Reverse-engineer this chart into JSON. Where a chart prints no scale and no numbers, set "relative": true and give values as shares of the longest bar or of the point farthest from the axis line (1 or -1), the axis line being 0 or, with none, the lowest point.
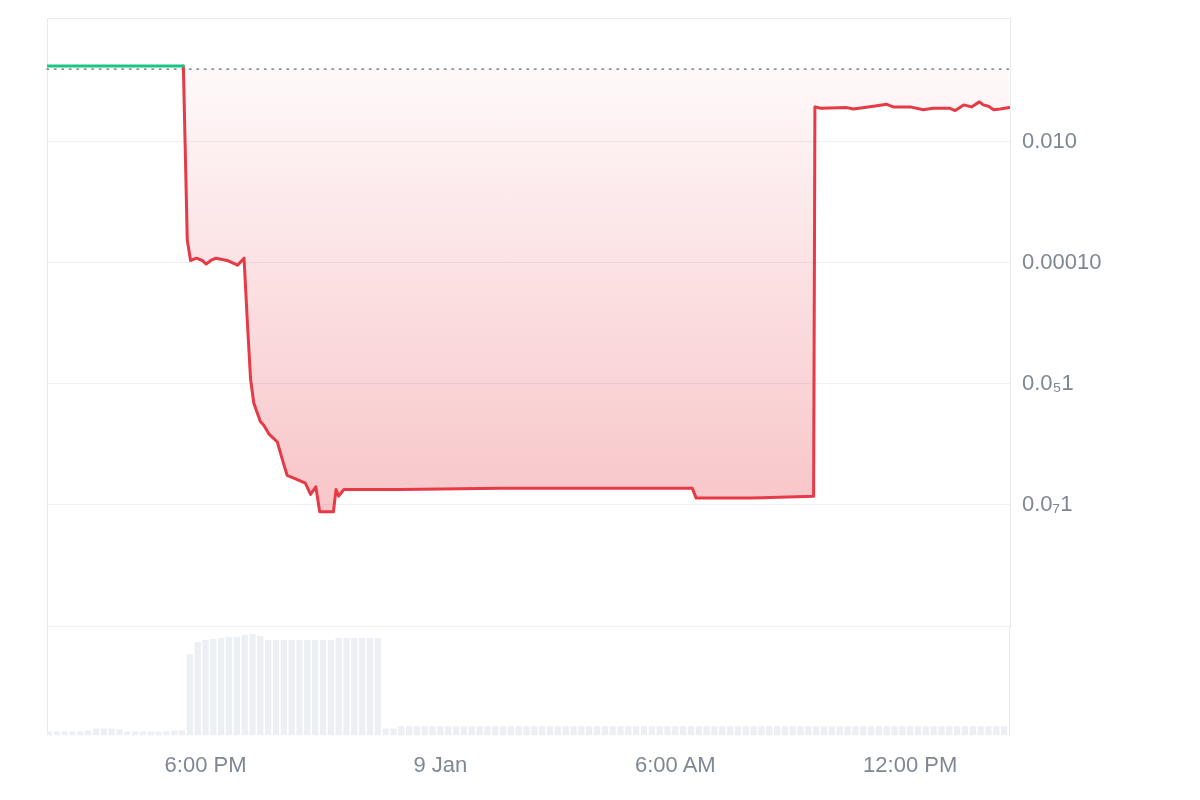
{
  "chart_data": [
    {
      "type": "line",
      "log": "y",
      "grid": "y",
      "tick_labels": "y",
      "xlim": [
        "--01-08T13:57",
        "--01-09T14:33"
      ],
      "ylim": [
        1e-10,
        1.12
      ],
      "yticks": [
        {
          "value": 1e-10,
          "label": null
        },
        {
          "value": 1e-08,
          "label": "0.0₇1"
        },
        {
          "value": 1e-06,
          "label": "0.0₅1"
        },
        {
          "value": 0.0001,
          "label": "0.00010"
        },
        {
          "value": 0.01,
          "label": "0.010"
        }
      ],
      "ref_lines": [
        {
          "axis": "y",
          "value": 0.16,
          "color": "#8c919a",
          "line_style": "dotted"
        }
      ],
      "series": [
        {
          "color": "#16c784",
          "x": [
            "--01-08T13:58",
            "--01-08T14:30",
            "--01-08T15:00",
            "--01-08T15:30",
            "--01-08T16:00",
            "--01-08T16:30",
            "--01-08T17:00",
            "--01-08T17:26"
          ],
          "values": [
            0.18,
            0.18,
            0.18,
            0.18,
            0.18,
            0.18,
            0.18,
            0.18
          ]
        },
        {
          "color": "#e63a46",
          "x": [
            "--01-08T17:26",
            "--01-08T17:32",
            "--01-08T17:37",
            "--01-08T17:46",
            "--01-08T17:55",
            "--01-08T18:01",
            "--01-08T18:08",
            "--01-08T18:16",
            "--01-08T18:33",
            "--01-08T18:49",
            "--01-08T18:59",
            "--01-08T19:04",
            "--01-08T19:09",
            "--01-08T19:14",
            "--01-08T19:24",
            "--01-08T19:29",
            "--01-08T19:37",
            "--01-08T19:50",
            "--01-08T19:58",
            "--01-08T20:05",
            "--01-08T20:18",
            "--01-08T20:33",
            "--01-08T20:41",
            "--01-08T20:49",
            "--01-08T20:55",
            "--01-08T21:16",
            "--01-08T21:20",
            "--01-08T21:24",
            "--01-08T21:32",
            "--01-08T22:59",
            "--01-09T01:32",
            "--01-09T04:05",
            "--01-09T06:26",
            "--01-09T06:32",
            "--01-09T07:55",
            "--01-09T09:32",
            "--01-09T09:34",
            "--01-09T09:43",
            "--01-09T10:23",
            "--01-09T10:33",
            "--01-09T11:04",
            "--01-09T11:24",
            "--01-09T11:34",
            "--01-09T12:00",
            "--01-09T12:20",
            "--01-09T12:35",
            "--01-09T13:01",
            "--01-09T13:09",
            "--01-09T13:22",
            "--01-09T13:34",
            "--01-09T13:46",
            "--01-09T13:52",
            "--01-09T14:00",
            "--01-09T14:08",
            "--01-09T14:18",
            "--01-09T14:32"
          ],
          "values": [
            0.18,
            0.00024,
            0.00011,
            0.00012,
            0.00011,
            9.6e-05,
            0.00011,
            0.00012,
            0.00011,
            9.2e-05,
            0.00012,
            1.1e-05,
            1.2e-06,
            4.8e-07,
            2.4e-07,
            2.1e-07,
            1.5e-07,
            1.1e-07,
            5.5e-08,
            3.1e-08,
            2.7e-08,
            2.3e-08,
            1.5e-08,
            2e-08,
            7.7e-09,
            7.7e-09,
            1.8e-08,
            1.4e-08,
            1.8e-08,
            1.8e-08,
            1.9e-08,
            1.9e-08,
            1.9e-08,
            1.3e-08,
            1.3e-08,
            1.4e-08,
            0.038,
            0.036,
            0.037,
            0.035,
            0.039,
            0.042,
            0.038,
            0.038,
            0.034,
            0.036,
            0.036,
            0.033,
            0.041,
            0.038,
            0.046,
            0.041,
            0.039,
            0.034,
            0.035,
            0.037
          ],
          "lower": [
            0.18,
            0.00024,
            0.00011,
            0.00012,
            0.00011,
            9.6e-05,
            0.00011,
            0.00012,
            0.00011,
            9.2e-05,
            0.00012,
            1.1e-05,
            1.2e-06,
            4.8e-07,
            2.4e-07,
            2.1e-07,
            1.5e-07,
            1.1e-07,
            5.5e-08,
            3.1e-08,
            2.7e-08,
            2.3e-08,
            1.5e-08,
            2e-08,
            7.7e-09,
            7.7e-09,
            1.8e-08,
            1.4e-08,
            1.8e-08,
            1.8e-08,
            1.9e-08,
            1.9e-08,
            1.9e-08,
            1.3e-08,
            1.3e-08,
            1.4e-08,
            0.038,
            0.036,
            0.037,
            0.035,
            0.039,
            0.042,
            0.038,
            0.038,
            0.034,
            0.036,
            0.036,
            0.033,
            0.041,
            0.038,
            0.046,
            0.041,
            0.039,
            0.034,
            0.035,
            0.037
          ],
          "upper": [
            0.16,
            0.16,
            0.16,
            0.16,
            0.16,
            0.16,
            0.16,
            0.16,
            0.16,
            0.16,
            0.16,
            0.16,
            0.16,
            0.16,
            0.16,
            0.16,
            0.16,
            0.16,
            0.16,
            0.16,
            0.16,
            0.16,
            0.16,
            0.16,
            0.16,
            0.16,
            0.16,
            0.16,
            0.16,
            0.16,
            0.16,
            0.16,
            0.16,
            0.16,
            0.16,
            0.16,
            0.16,
            0.16,
            0.16,
            0.16,
            0.16,
            0.16,
            0.16,
            0.16,
            0.16,
            0.16,
            0.16,
            0.16,
            0.16,
            0.16,
            0.16,
            0.16,
            0.16,
            0.16,
            0.16,
            0.16
          ]
        }
      ]
    },
    {
      "type": "bar",
      "relative": true,
      "tick_labels": "x",
      "color": "#eceff3",
      "xlim": [
        "--01-08T13:57",
        "--01-09T14:33"
      ],
      "xticks": [
        {
          "value": "--01-08T18:00",
          "label": "6:00 PM"
        },
        {
          "value": "--01-09T00:00",
          "label": "9 Jan"
        },
        {
          "value": "--01-09T06:00",
          "label": "6:00 AM"
        },
        {
          "value": "--01-09T12:00",
          "label": "12:00 PM"
        }
      ],
      "x": [
        "--01-08T14:00",
        "--01-08T14:12",
        "--01-08T14:24",
        "--01-08T14:36",
        "--01-08T14:48",
        "--01-08T15:00",
        "--01-08T15:12",
        "--01-08T15:24",
        "--01-08T15:36",
        "--01-08T15:48",
        "--01-08T16:00",
        "--01-08T16:12",
        "--01-08T16:24",
        "--01-08T16:36",
        "--01-08T16:48",
        "--01-08T17:00",
        "--01-08T17:12",
        "--01-08T17:24",
        "--01-08T17:36",
        "--01-08T17:48",
        "--01-08T18:00",
        "--01-08T18:12",
        "--01-08T18:24",
        "--01-08T18:36",
        "--01-08T18:48",
        "--01-08T19:00",
        "--01-08T19:12",
        "--01-08T19:24",
        "--01-08T19:36",
        "--01-08T19:48",
        "--01-08T20:00",
        "--01-08T20:12",
        "--01-08T20:24",
        "--01-08T20:36",
        "--01-08T20:48",
        "--01-08T21:00",
        "--01-08T21:12",
        "--01-08T21:24",
        "--01-08T21:36",
        "--01-08T21:48",
        "--01-08T22:00",
        "--01-08T22:12",
        "--01-08T22:24",
        "--01-08T22:36",
        "--01-08T22:48",
        "--01-08T23:00",
        "--01-08T23:12",
        "--01-08T23:24",
        "--01-08T23:36",
        "--01-08T23:48",
        "--01-09T00:00",
        "--01-09T00:12",
        "--01-09T00:24",
        "--01-09T00:36",
        "--01-09T00:48",
        "--01-09T01:00",
        "--01-09T01:12",
        "--01-09T01:24",
        "--01-09T01:36",
        "--01-09T01:48",
        "--01-09T02:00",
        "--01-09T02:12",
        "--01-09T02:24",
        "--01-09T02:36",
        "--01-09T02:48",
        "--01-09T03:00",
        "--01-09T03:12",
        "--01-09T03:24",
        "--01-09T03:36",
        "--01-09T03:48",
        "--01-09T04:00",
        "--01-09T04:12",
        "--01-09T04:24",
        "--01-09T04:36",
        "--01-09T04:48",
        "--01-09T05:00",
        "--01-09T05:12",
        "--01-09T05:24",
        "--01-09T05:36",
        "--01-09T05:48",
        "--01-09T06:00",
        "--01-09T06:12",
        "--01-09T06:24",
        "--01-09T06:36",
        "--01-09T06:48",
        "--01-09T07:00",
        "--01-09T07:12",
        "--01-09T07:24",
        "--01-09T07:36",
        "--01-09T07:48",
        "--01-09T08:00",
        "--01-09T08:12",
        "--01-09T08:24",
        "--01-09T08:36",
        "--01-09T08:48",
        "--01-09T09:00",
        "--01-09T09:12",
        "--01-09T09:24",
        "--01-09T09:36",
        "--01-09T09:48",
        "--01-09T10:00",
        "--01-09T10:12",
        "--01-09T10:24",
        "--01-09T10:36",
        "--01-09T10:48",
        "--01-09T11:00",
        "--01-09T11:12",
        "--01-09T11:24",
        "--01-09T11:36",
        "--01-09T11:48",
        "--01-09T12:00",
        "--01-09T12:12",
        "--01-09T12:24",
        "--01-09T12:36",
        "--01-09T12:48",
        "--01-09T13:00",
        "--01-09T13:12",
        "--01-09T13:24",
        "--01-09T13:36",
        "--01-09T13:48",
        "--01-09T14:00",
        "--01-09T14:12",
        "--01-09T14:24"
      ],
      "values": [
        0.04,
        0.04,
        0.04,
        0.04,
        0.04,
        0.05,
        0.07,
        0.07,
        0.07,
        0.06,
        0.04,
        0.04,
        0.04,
        0.04,
        0.04,
        0.04,
        0.05,
        0.05,
        0.8,
        0.92,
        0.94,
        0.95,
        0.96,
        0.97,
        0.97,
        0.99,
        1,
        0.98,
        0.94,
        0.94,
        0.94,
        0.94,
        0.94,
        0.94,
        0.94,
        0.94,
        0.94,
        0.96,
        0.96,
        0.96,
        0.96,
        0.96,
        0.96,
        0.07,
        0.07,
        0.09,
        0.09,
        0.09,
        0.09,
        0.09,
        0.09,
        0.09,
        0.09,
        0.09,
        0.09,
        0.09,
        0.09,
        0.09,
        0.09,
        0.09,
        0.09,
        0.09,
        0.09,
        0.09,
        0.09,
        0.09,
        0.09,
        0.09,
        0.09,
        0.09,
        0.09,
        0.09,
        0.09,
        0.09,
        0.09,
        0.09,
        0.09,
        0.09,
        0.09,
        0.09,
        0.09,
        0.09,
        0.09,
        0.09,
        0.09,
        0.09,
        0.09,
        0.09,
        0.09,
        0.09,
        0.09,
        0.09,
        0.09,
        0.09,
        0.09,
        0.09,
        0.09,
        0.09,
        0.09,
        0.09,
        0.09,
        0.09,
        0.09,
        0.09,
        0.09,
        0.09,
        0.09,
        0.09,
        0.09,
        0.09,
        0.09,
        0.09,
        0.09,
        0.09,
        0.09,
        0.09,
        0.09,
        0.09,
        0.09,
        0.09,
        0.09,
        0.09,
        0.09
      ]
    }
  ]
}
